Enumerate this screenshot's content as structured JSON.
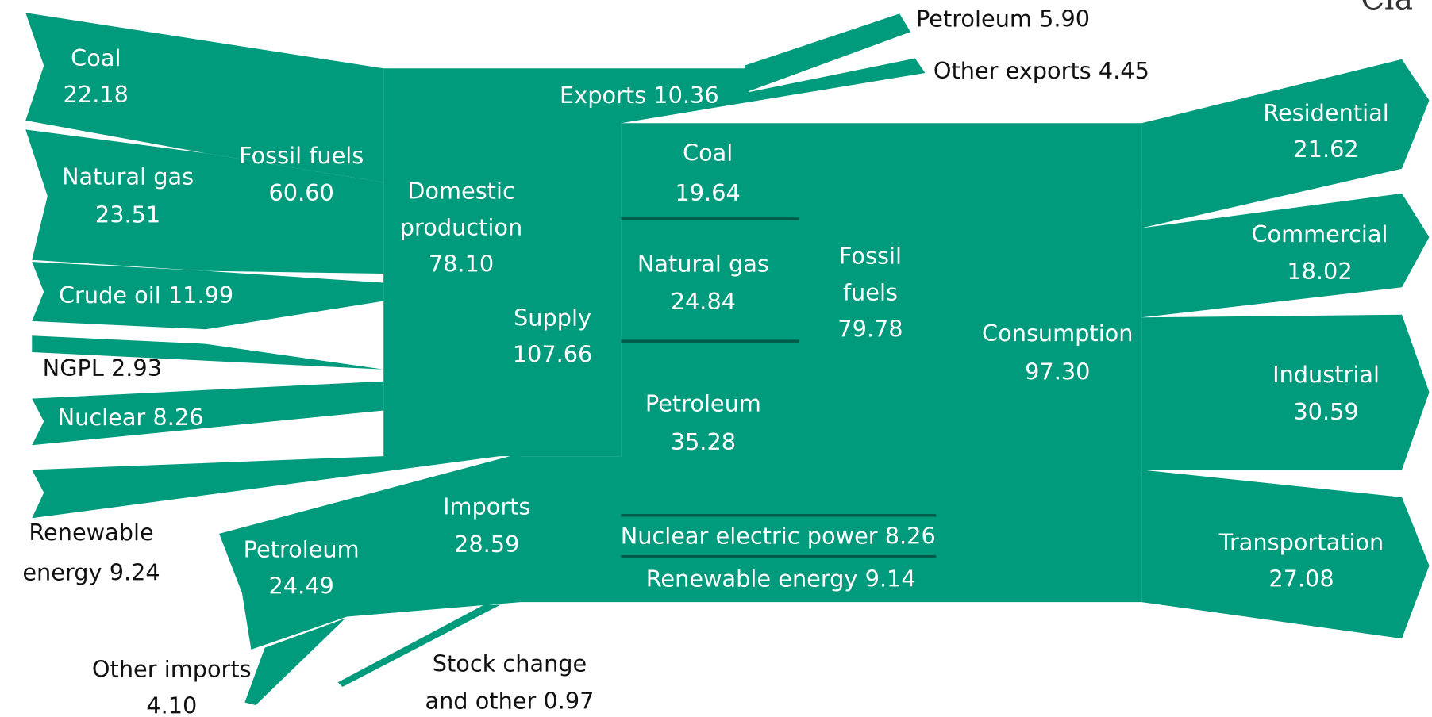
{
  "corner_text": "Cla",
  "nodes": [
    {
      "lines": [
        "Coal",
        "22.18"
      ]
    },
    {
      "lines": [
        "Natural gas",
        "23.51"
      ]
    },
    {
      "lines": [
        "Fossil fuels",
        "60.60"
      ]
    },
    {
      "lines": [
        "Crude oil 11.99"
      ]
    },
    {
      "lines": [
        "NGPL 2.93"
      ]
    },
    {
      "lines": [
        "Nuclear 8.26"
      ]
    },
    {
      "lines": [
        "Renewable",
        "energy 9.24"
      ]
    },
    {
      "lines": [
        "Domestic",
        "production",
        "78.10"
      ]
    },
    {
      "lines": [
        "Supply",
        "107.66"
      ]
    },
    {
      "lines": [
        "Exports 10.36"
      ]
    },
    {
      "lines": [
        "Petroleum 5.90"
      ]
    },
    {
      "lines": [
        "Other exports 4.45"
      ]
    },
    {
      "lines": [
        "Coal",
        "19.64"
      ]
    },
    {
      "lines": [
        "Natural gas",
        "24.84"
      ]
    },
    {
      "lines": [
        "Petroleum",
        "35.28"
      ]
    },
    {
      "lines": [
        "Fossil",
        "fuels",
        "79.78"
      ]
    },
    {
      "lines": [
        "Consumption",
        "97.30"
      ]
    },
    {
      "lines": [
        "Imports",
        "28.59"
      ]
    },
    {
      "lines": [
        "Petroleum",
        "24.49"
      ]
    },
    {
      "lines": [
        "Other imports",
        "4.10"
      ]
    },
    {
      "lines": [
        "Stock change",
        "and other 0.97"
      ]
    },
    {
      "lines": [
        "Nuclear electric power 8.26"
      ]
    },
    {
      "lines": [
        "Renewable energy 9.14"
      ]
    },
    {
      "lines": [
        "Residential",
        "21.62"
      ]
    },
    {
      "lines": [
        "Commercial",
        "18.02"
      ]
    },
    {
      "lines": [
        "Industrial",
        "30.59"
      ]
    },
    {
      "lines": [
        "Transportation",
        "27.08"
      ]
    }
  ]
}
